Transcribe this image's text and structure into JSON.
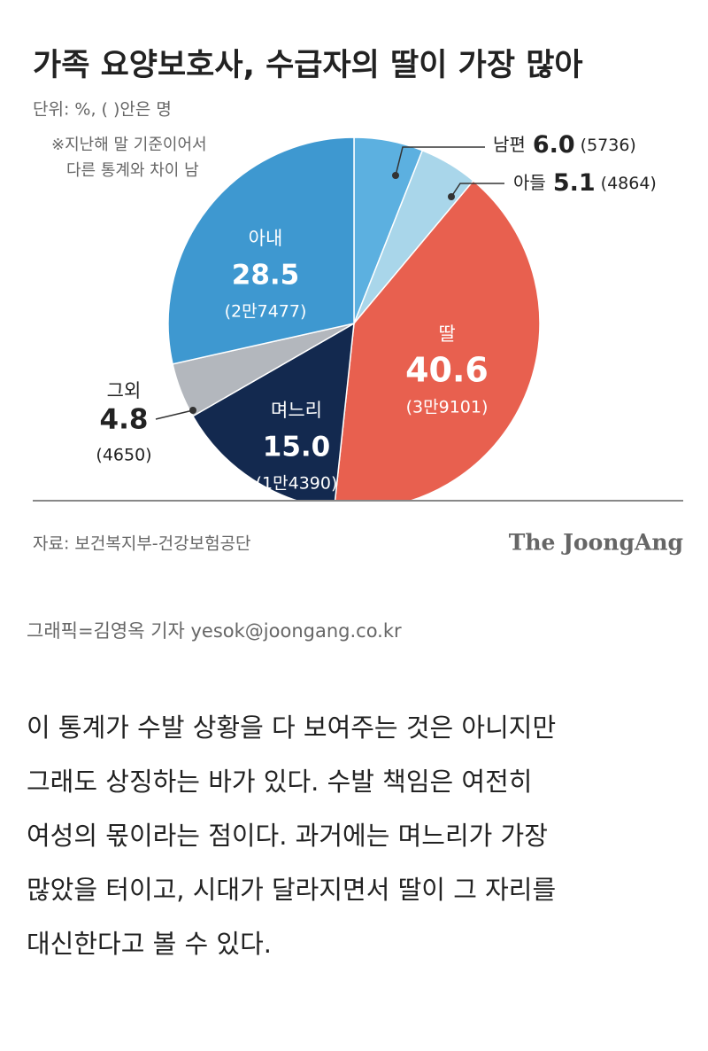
{
  "chart_data": {
    "type": "pie",
    "title": "가족 요양보호사, 수급자의 딸이 가장 많아",
    "subtitle": "단위: %, ( )안은 명",
    "notes": [
      "※지난해 말 기준이어서",
      "다른 통계와 차이 남"
    ],
    "categories": [
      "남편",
      "아들",
      "딸",
      "며느리",
      "그외",
      "아내"
    ],
    "values": [
      6.0,
      5.1,
      40.6,
      15.0,
      4.8,
      28.5
    ],
    "value_labels": [
      "6.0",
      "5.1",
      "40.6",
      "15.0",
      "4.8",
      "28.5"
    ],
    "count_labels": [
      "(5736)",
      "(4864)",
      "(3만9101)",
      "(1만4390)",
      "(4650)",
      "(2만7477)"
    ],
    "colors": [
      "#5cb0e0",
      "#a9d6ea",
      "#e8604f",
      "#13294f",
      "#b3b7bd",
      "#3e98d0"
    ],
    "source": "자료: 보건복지부-건강보험공단",
    "brand": "The JoongAng"
  },
  "credit": "그래픽=김영옥 기자 yesok@joongang.co.kr",
  "body": [
    "이 통계가 수발 상황을 다 보여주는 것은 아니지만",
    "그래도 상징하는 바가 있다. 수발 책임은 여전히",
    "여성의 몫이라는 점이다. 과거에는 며느리가 가장",
    "많았을 터이고, 시대가 달라지면서 딸이 그 자리를",
    "대신한다고 볼 수 있다."
  ]
}
